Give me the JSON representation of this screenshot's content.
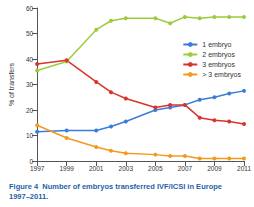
{
  "chart_data": {
    "type": "line",
    "title": "Figure 4  Number of embryos transferred IVF/ICSI in Europe 1997–2011.",
    "ylabel": "% of transfers",
    "x": [
      1997,
      1999,
      2001,
      2002,
      2003,
      2005,
      2006,
      2007,
      2008,
      2009,
      2010,
      2011
    ],
    "series": [
      {
        "name": "1 embryo",
        "color": "#3b7dd8",
        "values": [
          11.5,
          12,
          12,
          13.5,
          15.5,
          20,
          21,
          22,
          24,
          25,
          26.5,
          27.5
        ]
      },
      {
        "name": "2 embryos",
        "color": "#9ccc3c",
        "values": [
          35.5,
          39,
          51.5,
          55,
          56,
          56,
          54,
          56.5,
          56,
          56.5,
          56.5,
          56.5
        ]
      },
      {
        "name": "3 embryos",
        "color": "#d9342b",
        "values": [
          38,
          39.5,
          31,
          27,
          24.5,
          21,
          22,
          22,
          17,
          16,
          15.5,
          14.5
        ]
      },
      {
        "name": "> 3 embryos",
        "color": "#f39a1e",
        "values": [
          14,
          9,
          5.5,
          4,
          3,
          2.5,
          2,
          2,
          1,
          1,
          1,
          1
        ]
      }
    ],
    "xlim": [
      1997,
      2011
    ],
    "xticks": [
      1997,
      1999,
      2001,
      2003,
      2005,
      2007,
      2009,
      2011
    ],
    "ylim": [
      0,
      60
    ],
    "yticks": [
      0,
      10,
      20,
      30,
      40,
      50,
      60
    ],
    "grid": false,
    "legend": "right",
    "marker": "circle"
  }
}
